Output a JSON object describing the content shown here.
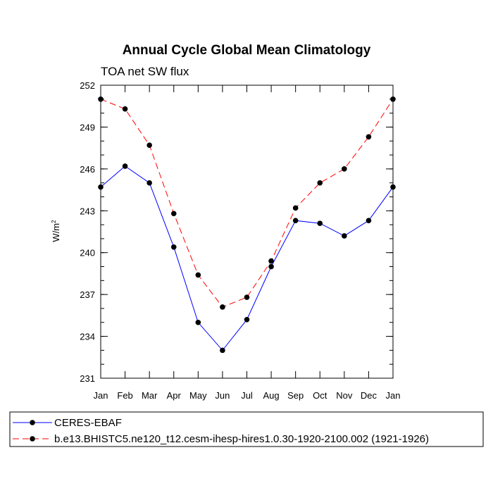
{
  "chart_data": {
    "type": "line",
    "title": "Annual Cycle Global Mean Climatology",
    "subtitle": "TOA net SW flux",
    "ylabel": "W/m",
    "ylabel_sup": "2",
    "xlabel": "",
    "categories": [
      "Jan",
      "Feb",
      "Mar",
      "Apr",
      "May",
      "Jun",
      "Jul",
      "Aug",
      "Sep",
      "Oct",
      "Nov",
      "Dec",
      "Jan"
    ],
    "ylim": [
      231,
      252
    ],
    "yticks": [
      231,
      234,
      237,
      240,
      243,
      246,
      249,
      252
    ],
    "y_minor_step": 1,
    "grid": false,
    "legend_placement": "bottom",
    "series": [
      {
        "name": "CERES-EBAF",
        "color": "#0000ff",
        "dash": "solid",
        "values": [
          244.7,
          246.2,
          245.0,
          240.4,
          235.0,
          233.0,
          235.2,
          239.0,
          242.3,
          242.1,
          241.2,
          242.3,
          244.7
        ]
      },
      {
        "name": "b.e13.BHISTC5.ne120_t12.cesm-ihesp-hires1.0.30-1920-2100.002 (1921-1926)",
        "color": "#ff0000",
        "dash": "dashed",
        "values": [
          251.0,
          250.3,
          247.7,
          242.8,
          238.4,
          236.1,
          236.8,
          239.4,
          243.2,
          245.0,
          246.0,
          248.3,
          251.0
        ]
      }
    ]
  }
}
